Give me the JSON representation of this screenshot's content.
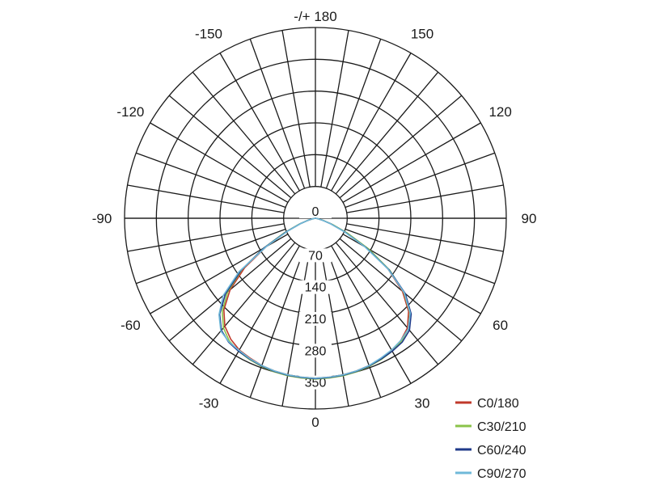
{
  "chart_data": {
    "type": "polar",
    "title": "",
    "radial_axis": {
      "min": 0,
      "max": 420,
      "ticks": [
        0,
        70,
        140,
        210,
        280,
        350
      ]
    },
    "angle_ticks": [
      {
        "angle": 0,
        "label": "0"
      },
      {
        "angle": 30,
        "label": "30"
      },
      {
        "angle": 60,
        "label": "60"
      },
      {
        "angle": 90,
        "label": "90"
      },
      {
        "angle": 120,
        "label": "120"
      },
      {
        "angle": 150,
        "label": "150"
      },
      {
        "angle": 180,
        "label": "-/+ 180"
      },
      {
        "angle": -150,
        "label": "-150"
      },
      {
        "angle": -120,
        "label": "-120"
      },
      {
        "angle": -90,
        "label": "-90"
      },
      {
        "angle": -60,
        "label": "-60"
      },
      {
        "angle": -30,
        "label": "-30"
      }
    ],
    "grid": {
      "spoke_step_deg": 10,
      "radial_rings": [
        70,
        140,
        210,
        280,
        350,
        420
      ]
    },
    "legend_position": "bottom-right",
    "series": [
      {
        "name": "C0/180",
        "color": "#c0392b",
        "theta": [
          -90,
          -85,
          -80,
          -75,
          -70,
          -65,
          -60,
          -55,
          -50,
          -45,
          -40,
          -35,
          -30,
          -25,
          -20,
          -15,
          -10,
          -5,
          0,
          5,
          10,
          15,
          20,
          25,
          30,
          35,
          40,
          45,
          50,
          55,
          60,
          65,
          70,
          75,
          80,
          85,
          90
        ],
        "r": [
          0,
          0,
          5,
          15,
          35,
          70,
          125,
          190,
          245,
          285,
          310,
          325,
          335,
          340,
          345,
          348,
          350,
          351,
          352,
          351,
          350,
          348,
          345,
          341,
          336,
          328,
          315,
          290,
          250,
          195,
          130,
          75,
          38,
          16,
          5,
          0,
          0
        ]
      },
      {
        "name": "C30/210",
        "color": "#8bc34a",
        "theta": [
          -90,
          -85,
          -80,
          -75,
          -70,
          -65,
          -60,
          -55,
          -50,
          -45,
          -40,
          -35,
          -30,
          -25,
          -20,
          -15,
          -10,
          -5,
          0,
          5,
          10,
          15,
          20,
          25,
          30,
          35,
          40,
          45,
          50,
          55,
          60,
          65,
          70,
          75,
          80,
          85,
          90
        ],
        "r": [
          0,
          0,
          6,
          17,
          38,
          75,
          132,
          198,
          252,
          290,
          315,
          330,
          338,
          343,
          347,
          350,
          352,
          353,
          354,
          353,
          352,
          350,
          347,
          343,
          338,
          330,
          318,
          294,
          254,
          200,
          135,
          78,
          40,
          17,
          6,
          0,
          0
        ]
      },
      {
        "name": "C60/240",
        "color": "#1f3a8a",
        "theta": [
          -90,
          -85,
          -80,
          -75,
          -70,
          -65,
          -60,
          -55,
          -50,
          -45,
          -40,
          -35,
          -30,
          -25,
          -20,
          -15,
          -10,
          -5,
          0,
          5,
          10,
          15,
          20,
          25,
          30,
          35,
          40,
          45,
          50,
          55,
          60,
          65,
          70,
          75,
          80,
          85,
          90
        ],
        "r": [
          0,
          0,
          5,
          16,
          36,
          72,
          130,
          200,
          258,
          298,
          322,
          333,
          338,
          342,
          346,
          349,
          351,
          352,
          353,
          352,
          351,
          349,
          346,
          342,
          338,
          333,
          322,
          298,
          258,
          198,
          128,
          72,
          36,
          15,
          5,
          0,
          0
        ]
      },
      {
        "name": "C90/270",
        "color": "#6fb9d9",
        "theta": [
          -90,
          -85,
          -80,
          -75,
          -70,
          -65,
          -60,
          -55,
          -50,
          -45,
          -40,
          -35,
          -30,
          -25,
          -20,
          -15,
          -10,
          -5,
          0,
          5,
          10,
          15,
          20,
          25,
          30,
          35,
          40,
          45,
          50,
          55,
          60,
          65,
          70,
          75,
          80,
          85,
          90
        ],
        "r": [
          0,
          0,
          4,
          14,
          34,
          68,
          125,
          205,
          265,
          300,
          324,
          332,
          336,
          341,
          345,
          348,
          350,
          351,
          352,
          351,
          350,
          348,
          345,
          340,
          335,
          328,
          318,
          295,
          255,
          195,
          125,
          70,
          35,
          14,
          4,
          0,
          0
        ]
      }
    ]
  }
}
